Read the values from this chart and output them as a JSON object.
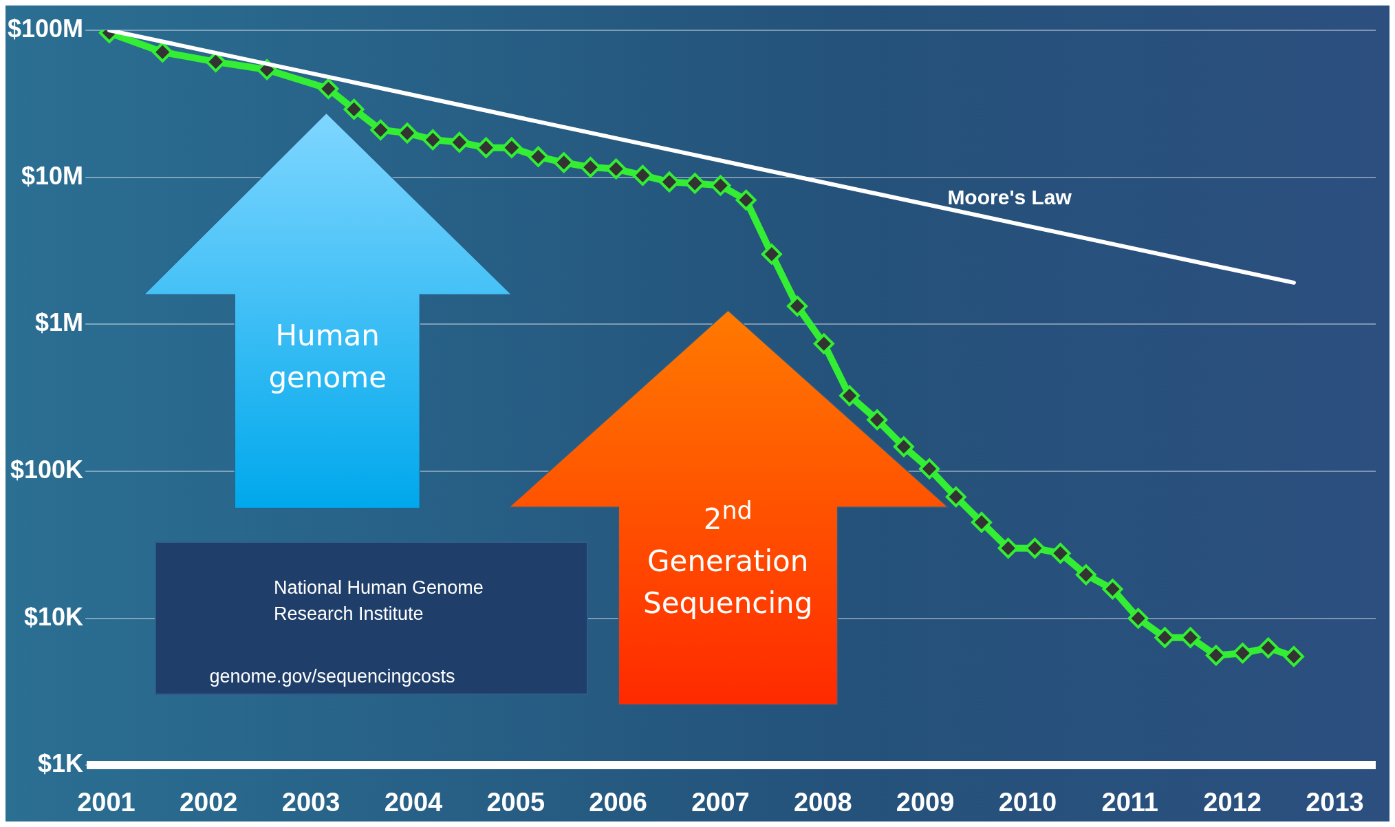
{
  "chart_data": {
    "type": "line",
    "log": "y",
    "grid": "y",
    "marker": "diamond",
    "xlim": [
      2000.85,
      2013.4
    ],
    "xticks": [
      2001,
      2002,
      2003,
      2004,
      2005,
      2006,
      2007,
      2008,
      2009,
      2010,
      2011,
      2012,
      2013
    ],
    "ylim": [
      1000,
      100000000
    ],
    "yticks": [
      {
        "value": 1000,
        "label": "$1K"
      },
      {
        "value": 10000,
        "label": "$10K"
      },
      {
        "value": 100000,
        "label": "$100K"
      },
      {
        "value": 1000000,
        "label": "$1M"
      },
      {
        "value": 10000000,
        "label": "$10M"
      },
      {
        "value": 100000000,
        "label": "$100M"
      }
    ],
    "series": [
      {
        "color": "#33ee33",
        "x": [
          2001.03,
          2001.55,
          2002.07,
          2002.57,
          2003.17,
          2003.42,
          2003.68,
          2003.94,
          2004.19,
          2004.45,
          2004.71,
          2004.96,
          2005.22,
          2005.47,
          2005.73,
          2005.98,
          2006.24,
          2006.5,
          2006.75,
          2007.0,
          2007.25,
          2007.5,
          2007.75,
          2008.01,
          2008.26,
          2008.53,
          2008.79,
          2009.04,
          2009.3,
          2009.55,
          2009.81,
          2010.07,
          2010.32,
          2010.57,
          2010.83,
          2011.08,
          2011.34,
          2011.59,
          2011.84,
          2012.1,
          2012.35,
          2012.6
        ],
        "values": [
          96000000,
          71000000,
          61000000,
          54000000,
          40000000,
          29000000,
          21000000,
          20000000,
          18000000,
          17300000,
          15900000,
          15900000,
          13800000,
          12600000,
          11700000,
          11400000,
          10300000,
          9300000,
          9100000,
          8800000,
          7000000,
          3000000,
          1330000,
          738000,
          327000,
          224000,
          147000,
          104000,
          67000,
          45000,
          30000,
          30000,
          27700,
          19800,
          15800,
          10000,
          7400,
          7400,
          5600,
          5800,
          6300,
          5500
        ]
      },
      {
        "name": "Moore's Law",
        "color": "#ffffff",
        "marker": "none",
        "x": [
          2001.03,
          2012.6
        ],
        "values": [
          100000000,
          1920000
        ]
      }
    ],
    "annotations": [
      "Human genome",
      "2$^{nd}$ Generation Sequencing",
      "National Human Genome Research Institute",
      "genome.gov/sequencingcosts"
    ]
  }
}
